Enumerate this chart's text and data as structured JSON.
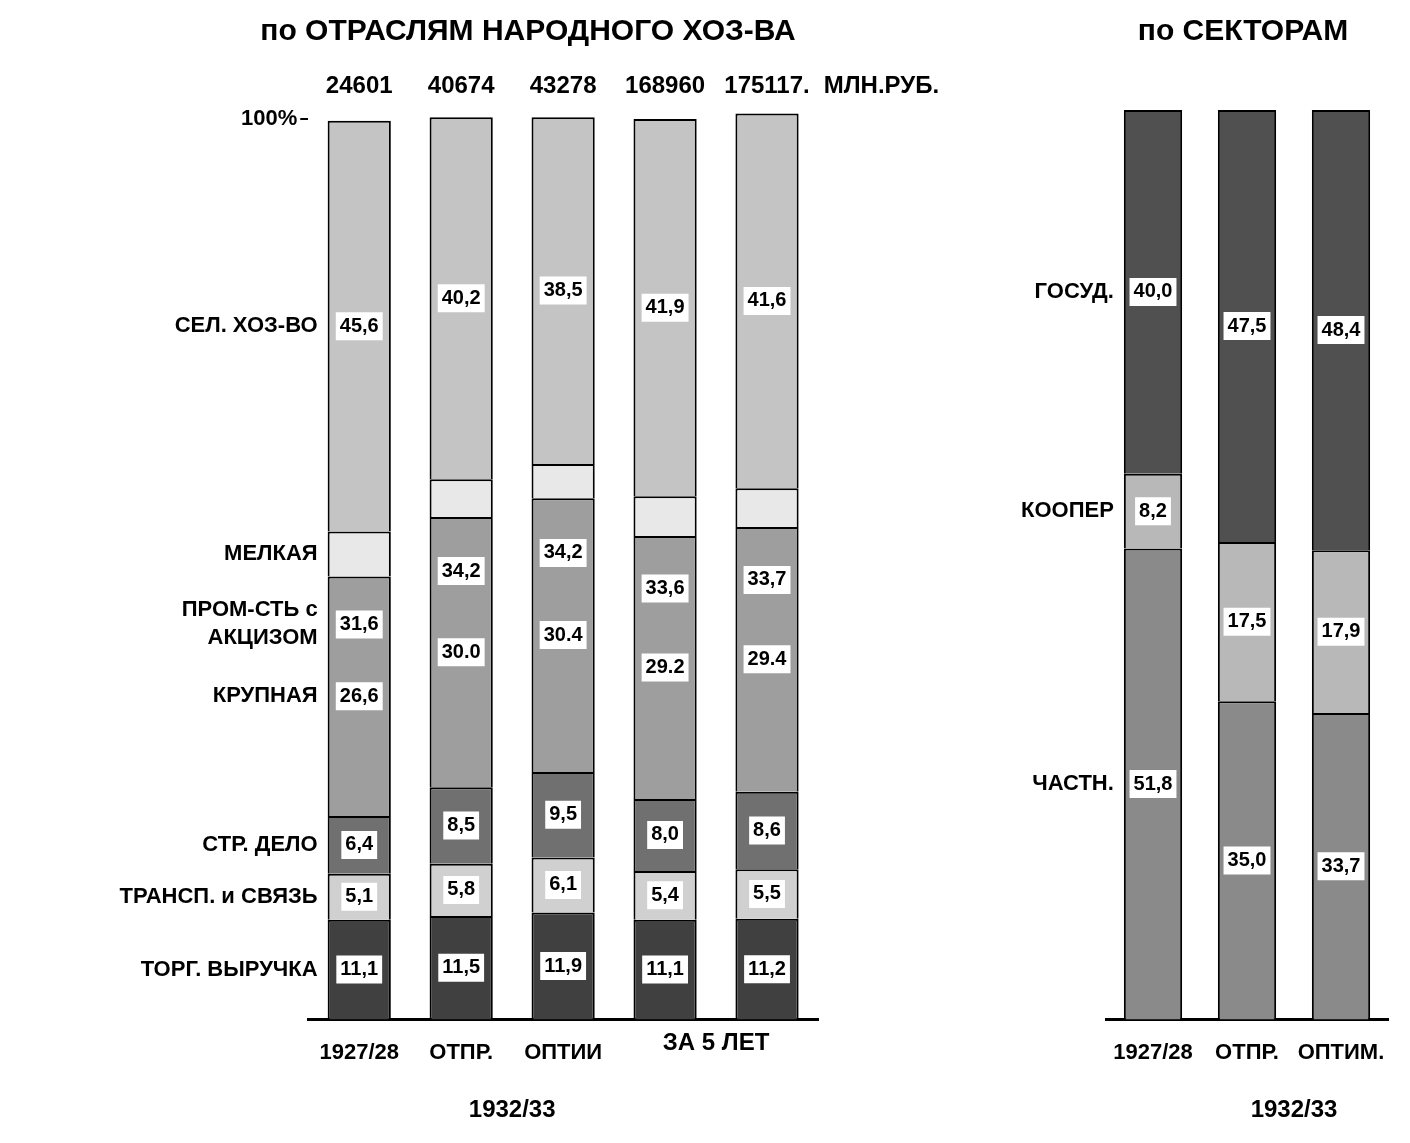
{
  "chart_data": [
    {
      "type": "bar",
      "title": "по ОТРАСЛЯМ НАРОДНОГО ХОЗ-ВА",
      "stacked": true,
      "categories": [
        "1927/28",
        "ОТПР.",
        "ОПТИИ",
        null,
        null
      ],
      "ylim": [
        0,
        101
      ],
      "yticks": [
        {
          "value": 100,
          "label": "100%"
        }
      ],
      "series": [
        {
          "name": "ТОРГ. ВЫРУЧКА",
          "color": "#404040",
          "values": [
            11.1,
            11.5,
            11.9,
            11.1,
            11.2
          ],
          "value_labels": [
            "11,1",
            "11,5",
            "11,9",
            "11,1",
            "11,2"
          ]
        },
        {
          "name": "ТРАНСП. и СВЯЗЬ",
          "color": "#d0d0d0",
          "values": [
            5.1,
            5.8,
            6.1,
            5.4,
            5.5
          ],
          "value_labels": [
            "5,1",
            "5,8",
            "6,1",
            "5,4",
            "5,5"
          ]
        },
        {
          "name": "СТР. ДЕЛО",
          "color": "#707070",
          "values": [
            6.4,
            8.5,
            9.5,
            8.0,
            8.6
          ],
          "value_labels": [
            "6,4",
            "8,5",
            "9,5",
            "8,0",
            "8,6"
          ]
        },
        {
          "name": "КРУПНАЯ",
          "color": "#9e9e9e",
          "values": [
            26.6,
            30.0,
            30.4,
            29.2,
            29.4
          ],
          "value_labels": [
            "26,6",
            "30.0",
            "30.4",
            "29.2",
            "29.4"
          ]
        },
        {
          "name": "МЕЛКАЯ",
          "color": "#e8e8e8",
          "values": [
            5.0,
            4.2,
            3.8,
            4.4,
            4.3
          ]
        },
        {
          "name": "СЕЛ. ХОЗ-ВО",
          "color": "#c4c4c4",
          "values": [
            45.6,
            40.2,
            38.5,
            41.9,
            41.6
          ],
          "value_labels": [
            "45,6",
            "40,2",
            "38,5",
            "41,9",
            "41,6"
          ]
        }
      ],
      "annotations": [
        "24601",
        "40674",
        "43278",
        "168960",
        "175117.",
        "МЛН.РУБ.",
        "ПРОМ-СТЬ с АКЦИЗОМ",
        "31,6",
        "34,2",
        "34,2",
        "33,6",
        "33,7",
        "1932/33",
        "ЗА 5 ЛЕТ"
      ]
    },
    {
      "type": "bar",
      "title": "по СЕКТОРАМ",
      "stacked": true,
      "categories": [
        "1927/28",
        "ОТПР.",
        "ОПТИМ."
      ],
      "ylim": [
        0,
        100
      ],
      "tick_labels": "x",
      "series": [
        {
          "name": "ЧАСТН.",
          "color": "#8a8a8a",
          "values": [
            51.8,
            35.0,
            33.7
          ],
          "value_labels": [
            "51,8",
            "35,0",
            "33,7"
          ]
        },
        {
          "name": "КООПЕР",
          "color": "#b8b8b8",
          "values": [
            8.2,
            17.5,
            17.9
          ],
          "value_labels": [
            "8,2",
            "17,5",
            "17,9"
          ]
        },
        {
          "name": "ГОСУД.",
          "color": "#505050",
          "values": [
            40.0,
            47.5,
            48.4
          ],
          "value_labels": [
            "40,0",
            "47,5",
            "48,4"
          ]
        }
      ],
      "annotations": [
        "1932/33"
      ]
    }
  ]
}
